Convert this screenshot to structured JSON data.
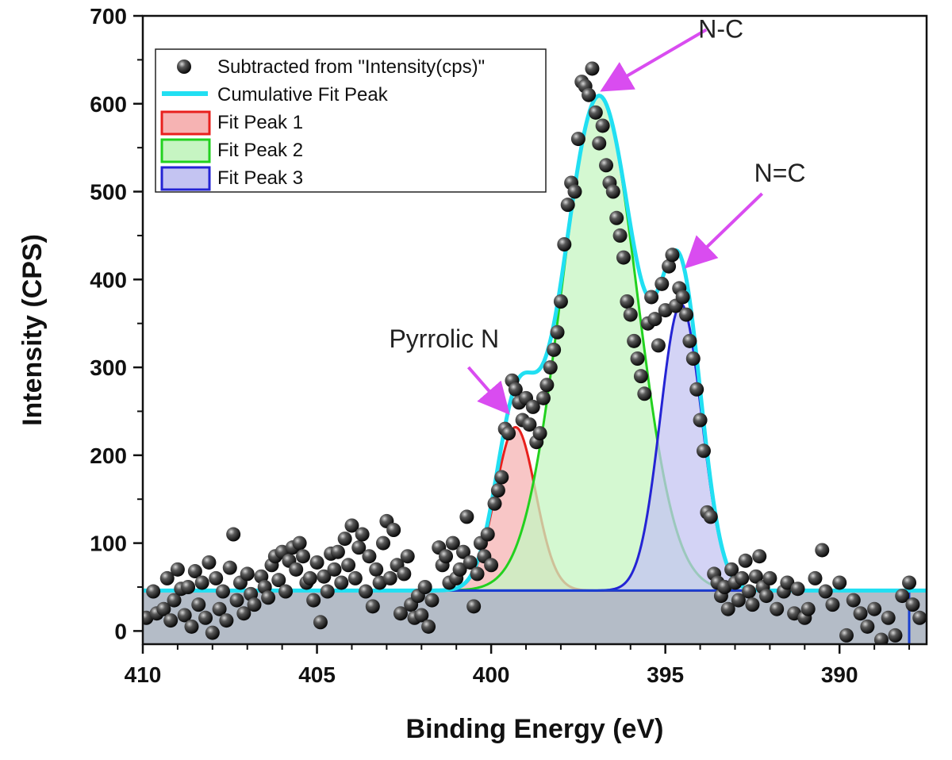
{
  "chart_data": {
    "type": "scatter",
    "title": "",
    "xlabel": "Binding Energy (eV)",
    "ylabel": "Intensity (CPS)",
    "xlim": [
      410,
      387.5
    ],
    "ylim": [
      -15,
      700
    ],
    "x_reversed": true,
    "x_ticks": [
      410,
      405,
      400,
      395,
      390
    ],
    "y_ticks": [
      0,
      100,
      200,
      300,
      400,
      500,
      600,
      700
    ],
    "grid": false,
    "legend_position": "top-left",
    "legend": [
      {
        "label": "Subtracted from \"Intensity(cps)\"",
        "kind": "marker"
      },
      {
        "label": "Cumulative Fit Peak",
        "kind": "line"
      },
      {
        "label": "Fit Peak 1",
        "kind": "box"
      },
      {
        "label": "Fit Peak 2",
        "kind": "box"
      },
      {
        "label": "Fit Peak 3",
        "kind": "box"
      }
    ],
    "baseline": 46,
    "baseline_range": [
      410,
      387.5
    ],
    "fit_peaks": [
      {
        "name": "Fit Peak 1",
        "center": 399.3,
        "height": 186,
        "fwhm": 1.35,
        "stroke": "#e8201d",
        "fill": "#f6b3b3"
      },
      {
        "name": "Fit Peak 2",
        "center": 396.9,
        "height": 563,
        "fwhm": 2.55,
        "stroke": "#22d11f",
        "fill": "#c6f5c2"
      },
      {
        "name": "Fit Peak 3",
        "center": 394.55,
        "height": 326,
        "fwhm": 1.4,
        "stroke": "#2424d4",
        "fill": "#c4c4f2"
      }
    ],
    "cumulative_color": "#21dff2",
    "background_fill": "#b0b8c4",
    "annotations": [
      {
        "text": "N-C",
        "target_x": 396.9,
        "target_y": 612
      },
      {
        "text": "N=C",
        "target_x": 394.5,
        "target_y": 412
      },
      {
        "text": "Pyrrolic N",
        "target_x": 399.4,
        "target_y": 246
      }
    ],
    "annotation_color": "#d94cf0",
    "scatter": [
      [
        409.9,
        15
      ],
      [
        409.7,
        45
      ],
      [
        409.6,
        20
      ],
      [
        409.4,
        25
      ],
      [
        409.3,
        60
      ],
      [
        409.2,
        12
      ],
      [
        409.1,
        35
      ],
      [
        409.0,
        70
      ],
      [
        408.9,
        48
      ],
      [
        408.8,
        18
      ],
      [
        408.7,
        50
      ],
      [
        408.6,
        5
      ],
      [
        408.5,
        68
      ],
      [
        408.4,
        30
      ],
      [
        408.3,
        55
      ],
      [
        408.2,
        15
      ],
      [
        408.1,
        78
      ],
      [
        408.0,
        -2
      ],
      [
        407.9,
        60
      ],
      [
        407.8,
        25
      ],
      [
        407.7,
        45
      ],
      [
        407.6,
        12
      ],
      [
        407.5,
        72
      ],
      [
        407.4,
        110
      ],
      [
        407.3,
        35
      ],
      [
        407.2,
        55
      ],
      [
        407.1,
        20
      ],
      [
        407.0,
        65
      ],
      [
        406.9,
        42
      ],
      [
        406.8,
        30
      ],
      [
        406.6,
        62
      ],
      [
        406.5,
        50
      ],
      [
        406.4,
        38
      ],
      [
        406.3,
        75
      ],
      [
        406.2,
        85
      ],
      [
        406.1,
        58
      ],
      [
        406.0,
        90
      ],
      [
        405.9,
        45
      ],
      [
        405.8,
        80
      ],
      [
        405.7,
        95
      ],
      [
        405.6,
        70
      ],
      [
        405.5,
        100
      ],
      [
        405.4,
        85
      ],
      [
        405.3,
        55
      ],
      [
        405.2,
        60
      ],
      [
        405.1,
        35
      ],
      [
        405.0,
        78
      ],
      [
        404.9,
        10
      ],
      [
        404.8,
        62
      ],
      [
        404.7,
        45
      ],
      [
        404.6,
        88
      ],
      [
        404.5,
        70
      ],
      [
        404.4,
        90
      ],
      [
        404.3,
        55
      ],
      [
        404.2,
        105
      ],
      [
        404.1,
        75
      ],
      [
        404.0,
        120
      ],
      [
        403.9,
        60
      ],
      [
        403.8,
        95
      ],
      [
        403.7,
        110
      ],
      [
        403.6,
        45
      ],
      [
        403.5,
        85
      ],
      [
        403.4,
        28
      ],
      [
        403.3,
        70
      ],
      [
        403.2,
        55
      ],
      [
        403.1,
        100
      ],
      [
        403.0,
        125
      ],
      [
        402.9,
        60
      ],
      [
        402.8,
        115
      ],
      [
        402.7,
        75
      ],
      [
        402.6,
        20
      ],
      [
        402.5,
        65
      ],
      [
        402.4,
        85
      ],
      [
        402.3,
        30
      ],
      [
        402.2,
        15
      ],
      [
        402.1,
        40
      ],
      [
        402.0,
        18
      ],
      [
        401.9,
        50
      ],
      [
        401.8,
        5
      ],
      [
        401.7,
        35
      ],
      [
        401.5,
        95
      ],
      [
        401.4,
        75
      ],
      [
        401.3,
        85
      ],
      [
        401.2,
        55
      ],
      [
        401.1,
        100
      ],
      [
        401.0,
        60
      ],
      [
        400.9,
        70
      ],
      [
        400.8,
        90
      ],
      [
        400.7,
        130
      ],
      [
        400.6,
        78
      ],
      [
        400.5,
        28
      ],
      [
        400.4,
        65
      ],
      [
        400.3,
        100
      ],
      [
        400.2,
        85
      ],
      [
        400.1,
        110
      ],
      [
        400.0,
        75
      ],
      [
        399.9,
        145
      ],
      [
        399.8,
        160
      ],
      [
        399.7,
        175
      ],
      [
        399.6,
        230
      ],
      [
        399.5,
        225
      ],
      [
        399.4,
        285
      ],
      [
        399.3,
        275
      ],
      [
        399.2,
        260
      ],
      [
        399.1,
        240
      ],
      [
        399.0,
        265
      ],
      [
        398.9,
        235
      ],
      [
        398.8,
        255
      ],
      [
        398.7,
        215
      ],
      [
        398.6,
        225
      ],
      [
        398.5,
        265
      ],
      [
        398.4,
        280
      ],
      [
        398.3,
        300
      ],
      [
        398.2,
        320
      ],
      [
        398.1,
        340
      ],
      [
        398.0,
        375
      ],
      [
        397.9,
        440
      ],
      [
        397.8,
        485
      ],
      [
        397.7,
        510
      ],
      [
        397.6,
        500
      ],
      [
        397.5,
        560
      ],
      [
        397.4,
        625
      ],
      [
        397.3,
        620
      ],
      [
        397.2,
        610
      ],
      [
        397.1,
        640
      ],
      [
        397.0,
        590
      ],
      [
        396.9,
        555
      ],
      [
        396.8,
        575
      ],
      [
        396.7,
        530
      ],
      [
        396.6,
        510
      ],
      [
        396.5,
        500
      ],
      [
        396.4,
        470
      ],
      [
        396.3,
        450
      ],
      [
        396.2,
        425
      ],
      [
        396.1,
        375
      ],
      [
        396.0,
        360
      ],
      [
        395.9,
        330
      ],
      [
        395.8,
        310
      ],
      [
        395.7,
        290
      ],
      [
        395.6,
        270
      ],
      [
        395.5,
        350
      ],
      [
        395.4,
        380
      ],
      [
        395.3,
        355
      ],
      [
        395.2,
        325
      ],
      [
        395.1,
        395
      ],
      [
        395.0,
        365
      ],
      [
        394.9,
        415
      ],
      [
        394.8,
        428
      ],
      [
        394.7,
        370
      ],
      [
        394.6,
        390
      ],
      [
        394.5,
        380
      ],
      [
        394.4,
        360
      ],
      [
        394.3,
        330
      ],
      [
        394.2,
        310
      ],
      [
        394.1,
        275
      ],
      [
        394.0,
        240
      ],
      [
        393.9,
        205
      ],
      [
        393.8,
        135
      ],
      [
        393.7,
        130
      ],
      [
        393.6,
        65
      ],
      [
        393.5,
        55
      ],
      [
        393.4,
        40
      ],
      [
        393.3,
        50
      ],
      [
        393.2,
        25
      ],
      [
        393.1,
        70
      ],
      [
        393.0,
        55
      ],
      [
        392.9,
        35
      ],
      [
        392.8,
        60
      ],
      [
        392.7,
        80
      ],
      [
        392.6,
        45
      ],
      [
        392.5,
        30
      ],
      [
        392.4,
        62
      ],
      [
        392.3,
        85
      ],
      [
        392.2,
        50
      ],
      [
        392.1,
        40
      ],
      [
        392.0,
        60
      ],
      [
        391.8,
        25
      ],
      [
        391.6,
        45
      ],
      [
        391.5,
        55
      ],
      [
        391.3,
        20
      ],
      [
        391.2,
        48
      ],
      [
        391.0,
        15
      ],
      [
        390.9,
        25
      ],
      [
        390.7,
        60
      ],
      [
        390.5,
        92
      ],
      [
        390.4,
        45
      ],
      [
        390.2,
        30
      ],
      [
        390.0,
        55
      ],
      [
        389.8,
        -5
      ],
      [
        389.6,
        35
      ],
      [
        389.4,
        20
      ],
      [
        389.2,
        5
      ],
      [
        389.0,
        25
      ],
      [
        388.8,
        -10
      ],
      [
        388.6,
        15
      ],
      [
        388.4,
        -5
      ],
      [
        388.2,
        40
      ],
      [
        388.0,
        55
      ],
      [
        387.9,
        30
      ],
      [
        387.7,
        15
      ]
    ]
  }
}
